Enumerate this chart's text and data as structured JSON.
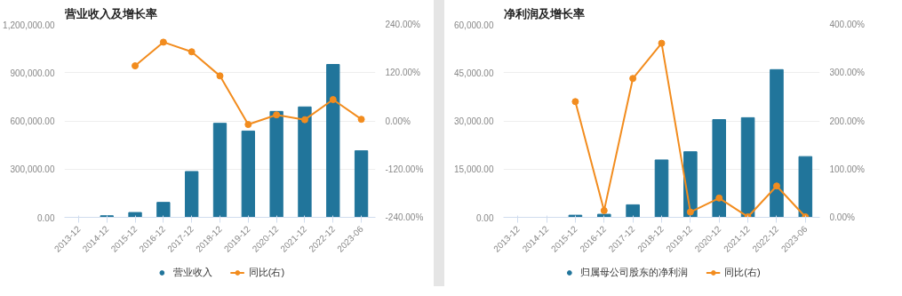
{
  "chart_data": [
    {
      "type": "bar",
      "title": "营业收入及增长率",
      "categories": [
        "2013-12",
        "2014-12",
        "2015-12",
        "2016-12",
        "2017-12",
        "2018-12",
        "2019-12",
        "2020-12",
        "2021-12",
        "2022-12",
        "2023-06"
      ],
      "series": [
        {
          "name": "营业收入",
          "color": "#21759b",
          "values": [
            null,
            10000,
            30000,
            93000,
            285000,
            585000,
            537000,
            659000,
            687000,
            951000,
            414000
          ]
        },
        {
          "name": "同比(右)",
          "type": "line",
          "axis": "y2",
          "color": "#f28c1e",
          "values": [
            null,
            null,
            137,
            196,
            172,
            112,
            -9,
            15,
            3,
            53,
            4
          ]
        }
      ],
      "ylim": [
        0,
        1200000
      ],
      "yticks": [
        {
          "value": 0,
          "label": "0.00"
        },
        {
          "value": 300000,
          "label": "300,000.00"
        },
        {
          "value": 600000,
          "label": "600,000.00"
        },
        {
          "value": 900000,
          "label": "900,000.00"
        },
        {
          "value": 1200000,
          "label": "1,200,000.00"
        }
      ],
      "y2lim": [
        -240,
        240
      ],
      "y2ticks": [
        {
          "value": -240,
          "label": "-240.00%"
        },
        {
          "value": -120,
          "label": "-120.00%"
        },
        {
          "value": 0,
          "label": "0.00%"
        },
        {
          "value": 120,
          "label": "120.00%"
        },
        {
          "value": 240,
          "label": "240.00%"
        }
      ],
      "grid": "y",
      "legend": "bottom",
      "marker": "circle"
    },
    {
      "type": "bar",
      "title": "净利润及增长率",
      "categories": [
        "2013-12",
        "2014-12",
        "2015-12",
        "2016-12",
        "2017-12",
        "2018-12",
        "2019-12",
        "2020-12",
        "2021-12",
        "2022-12",
        "2023-06"
      ],
      "series": [
        {
          "name": "归属母公司股东的净利润",
          "color": "#21759b",
          "values": [
            null,
            null,
            660,
            950,
            3900,
            17850,
            20400,
            30400,
            31000,
            45950,
            18900
          ]
        },
        {
          "name": "同比(右)",
          "type": "line",
          "axis": "y2",
          "color": "#f28c1e",
          "values": [
            null,
            null,
            240,
            14,
            288,
            361,
            11,
            40,
            1,
            65,
            1
          ]
        }
      ],
      "ylim": [
        0,
        60000
      ],
      "yticks": [
        {
          "value": 0,
          "label": "0.00"
        },
        {
          "value": 15000,
          "label": "15,000.00"
        },
        {
          "value": 30000,
          "label": "30,000.00"
        },
        {
          "value": 45000,
          "label": "45,000.00"
        },
        {
          "value": 60000,
          "label": "60,000.00"
        }
      ],
      "y2lim": [
        0,
        400
      ],
      "y2ticks": [
        {
          "value": 0,
          "label": "0.00%"
        },
        {
          "value": 100,
          "label": "100.00%"
        },
        {
          "value": 200,
          "label": "200.00%"
        },
        {
          "value": 300,
          "label": "300.00%"
        },
        {
          "value": 400,
          "label": "400.00%"
        }
      ],
      "grid": "y",
      "legend": "bottom",
      "marker": "circle"
    }
  ]
}
